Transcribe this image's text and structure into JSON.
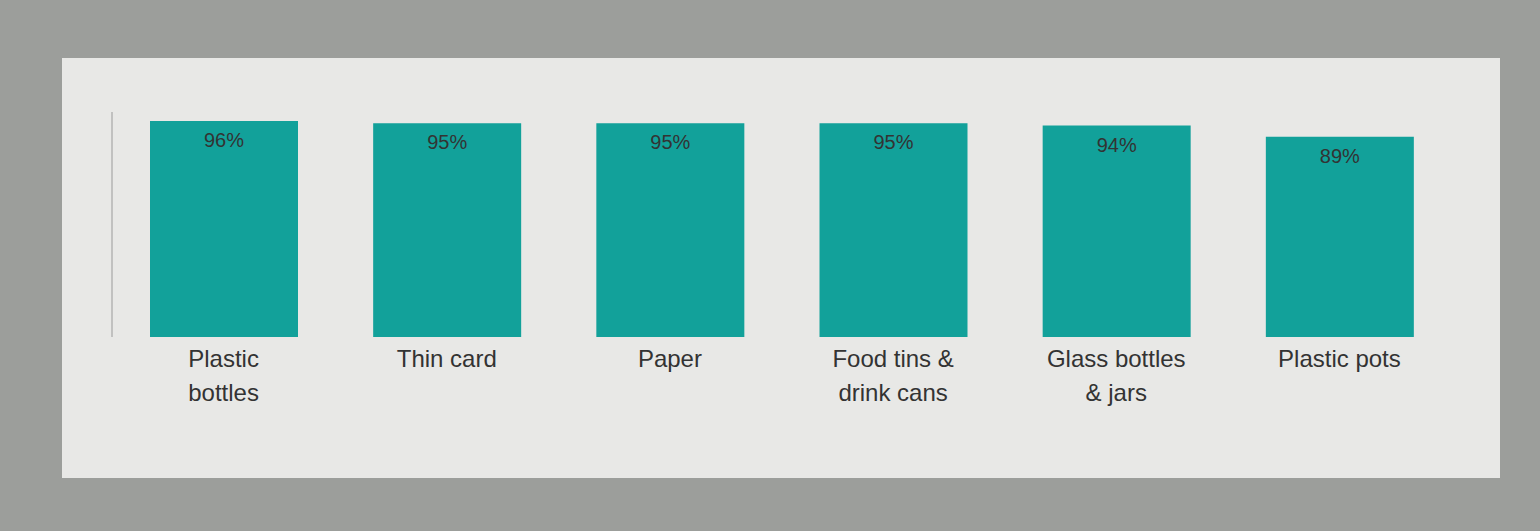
{
  "chart_data": {
    "type": "bar",
    "categories": [
      "Plastic bottles",
      "Thin card",
      "Paper",
      "Food tins & drink cans",
      "Glass bottles & jars",
      "Plastic pots"
    ],
    "values": [
      96,
      95,
      95,
      95,
      94,
      89
    ],
    "value_labels": [
      "96%",
      "95%",
      "95%",
      "95%",
      "94%",
      "89%"
    ],
    "data_labels": true,
    "color": "#12a19a",
    "ylim": [
      0,
      100
    ],
    "tick_labels": "x",
    "grid": false
  }
}
